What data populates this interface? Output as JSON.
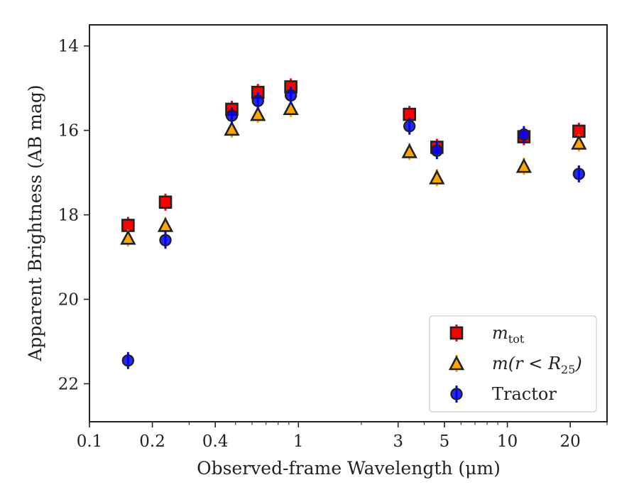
{
  "chart_data": {
    "type": "scatter",
    "xscale": "log",
    "yscale": "linear",
    "yaxis_inverted": true,
    "xlim": [
      0.1,
      30
    ],
    "ylim": [
      22.9,
      13.5
    ],
    "xlabel": "Observed-frame Wavelength (μm)",
    "ylabel": "Apparent Brightness (AB mag)",
    "xticks": [
      0.1,
      0.2,
      0.4,
      1,
      3,
      5,
      10,
      20
    ],
    "xtick_labels": [
      "0.1",
      "0.2",
      "0.4",
      "1",
      "3",
      "5",
      "10",
      "20"
    ],
    "yticks": [
      14,
      16,
      18,
      20,
      22
    ],
    "ytick_labels": [
      "14",
      "16",
      "18",
      "20",
      "22"
    ],
    "grid": false,
    "legend_position": "lower-right",
    "series": [
      {
        "name": "m_tot",
        "legend_main": "m",
        "legend_sub": "tot",
        "marker": "square",
        "color": "#ff0000",
        "x": [
          0.153,
          0.231,
          0.48,
          0.64,
          0.92,
          3.4,
          4.6,
          12.0,
          22.0
        ],
        "y": [
          18.25,
          17.7,
          15.5,
          15.1,
          14.97,
          15.62,
          16.4,
          16.15,
          16.02
        ]
      },
      {
        "name": "m(r < R_25)",
        "legend_main": "m(r < R",
        "legend_sub": "25",
        "legend_tail": ")",
        "marker": "triangle",
        "color": "#ffa500",
        "x": [
          0.153,
          0.231,
          0.48,
          0.64,
          0.92,
          3.4,
          4.6,
          12.0,
          22.0
        ],
        "y": [
          18.55,
          18.25,
          15.97,
          15.62,
          15.48,
          16.5,
          17.12,
          16.85,
          16.3
        ]
      },
      {
        "name": "Tractor",
        "legend_main": "Tractor",
        "marker": "circle",
        "color": "#0000ff",
        "x": [
          0.153,
          0.231,
          0.48,
          0.64,
          0.92,
          3.4,
          4.6,
          12.0,
          22.0
        ],
        "y": [
          21.45,
          18.6,
          15.65,
          15.3,
          15.17,
          15.9,
          16.48,
          16.1,
          17.03
        ]
      }
    ]
  }
}
